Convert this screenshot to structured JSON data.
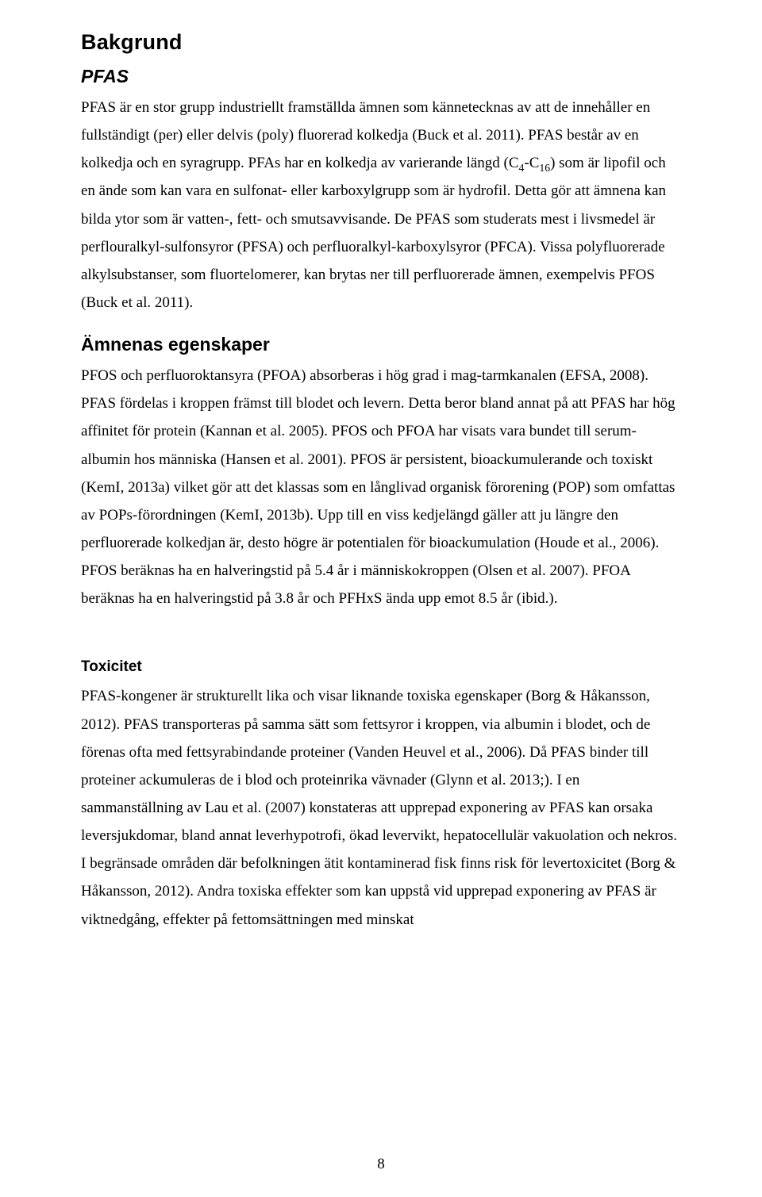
{
  "heading_main": "Bakgrund",
  "section_pfas": {
    "title": "PFAS",
    "para1_html": "PFAS är en stor grupp industriellt framställda ämnen som kännetecknas av att de innehåller en fullständigt (per) eller delvis (poly) fluorerad kolkedja (Buck et al. 2011). PFAS består av en kolkedja och en syragrupp. PFAs har en kolkedja av varierande längd (C<sub>4</sub>-C<sub>16</sub>) som är lipofil och en ände som kan vara en sulfonat- eller karboxylgrupp som är hydrofil. Detta gör att ämnena kan bilda ytor som är vatten-, fett- och smutsavvisande. De PFAS som studerats mest i livsmedel är perflouralkyl-sulfonsyror (PFSA) och perfluoralkyl-karboxylsyror (PFCA). Vissa polyfluorerade alkylsubstanser, som fluortelomerer, kan brytas ner till perfluorerade ämnen, exempelvis PFOS (Buck et al. 2011)."
  },
  "section_props": {
    "title": "Ämnenas egenskaper",
    "para1": "PFOS och perfluoroktansyra (PFOA) absorberas i hög grad i mag-tarmkanalen (EFSA, 2008). PFAS fördelas i kroppen främst till blodet och levern. Detta beror bland annat på att PFAS har hög affinitet för protein (Kannan et al. 2005). PFOS och PFOA har visats vara bundet till serum-albumin hos människa (Hansen et al. 2001). PFOS är persistent, bioackumulerande och toxiskt (KemI, 2013a) vilket gör att det klassas som en långlivad organisk förorening (POP) som omfattas av POPs-förordningen (KemI, 2013b). Upp till en viss kedjelängd gäller att ju längre den perfluorerade kolkedjan är, desto högre är potentialen för bioackumulation (Houde et al., 2006). PFOS beräknas ha en halveringstid på 5.4 år i människokroppen (Olsen et al. 2007). PFOA beräknas ha en halveringstid på 3.8 år och PFHxS ända upp emot 8.5 år (ibid.)."
  },
  "section_tox": {
    "title": "Toxicitet",
    "para1": "PFAS-kongener är strukturellt lika och visar liknande toxiska egenskaper (Borg & Håkansson, 2012). PFAS transporteras på samma sätt som fettsyror i kroppen, via albumin i blodet, och de förenas ofta med fettsyrabindande proteiner (Vanden Heuvel et al., 2006). Då PFAS binder till proteiner ackumuleras de i blod och proteinrika vävnader (Glynn et al. 2013;). I en sammanställning av Lau et al. (2007) konstateras att upprepad exponering av PFAS kan orsaka leversjukdomar, bland annat leverhypotrofi, ökad levervikt, hepatocellulär vakuolation och nekros. I begränsade områden där befolkningen ätit kontaminerad fisk finns risk för levertoxicitet (Borg & Håkansson, 2012). Andra toxiska effekter som kan uppstå vid upprepad exponering av PFAS är viktnedgång, effekter på fettomsättningen med minskat"
  },
  "page_number": "8"
}
